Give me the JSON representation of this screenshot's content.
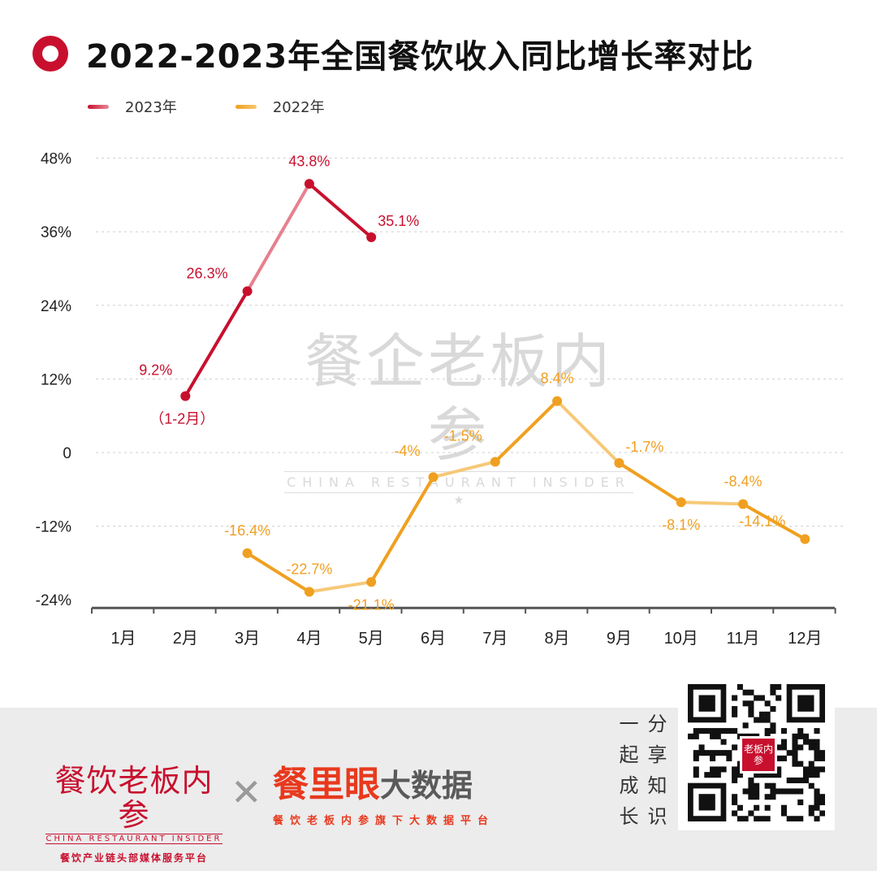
{
  "title": "2022-2023年全国餐饮收入同比增长率对比",
  "watermark": {
    "cn": "餐企老板内参",
    "en": "CHINA RESTAURANT INSIDER"
  },
  "colors": {
    "series_2023": "#c8102e",
    "series_2022": "#f0a020",
    "title_icon": "#c8102e"
  },
  "chart_data": {
    "type": "line",
    "title": "2022-2023年全国餐饮收入同比增长率对比",
    "categories": [
      "1月",
      "2月",
      "3月",
      "4月",
      "5月",
      "6月",
      "7月",
      "8月",
      "9月",
      "10月",
      "11月",
      "12月"
    ],
    "y_ticks": [
      "48%",
      "36%",
      "24%",
      "12%",
      "0",
      "-12%",
      "-24%"
    ],
    "ylim": [
      -24,
      48
    ],
    "grid": "dashed horizontal",
    "legend_position": "top-left",
    "series": [
      {
        "name": "2023年",
        "color": "#c8102e",
        "points": [
          {
            "category": "2月",
            "value": 9.2,
            "label": "9.2%",
            "note": "（1-2月）"
          },
          {
            "category": "3月",
            "value": 26.3,
            "label": "26.3%"
          },
          {
            "category": "4月",
            "value": 43.8,
            "label": "43.8%"
          },
          {
            "category": "5月",
            "value": 35.1,
            "label": "35.1%"
          }
        ]
      },
      {
        "name": "2022年",
        "color": "#f0a020",
        "points": [
          {
            "category": "3月",
            "value": -16.4,
            "label": "-16.4%"
          },
          {
            "category": "4月",
            "value": -22.7,
            "label": "-22.7%"
          },
          {
            "category": "5月",
            "value": -21.1,
            "label": "-21.1%"
          },
          {
            "category": "6月",
            "value": -4,
            "label": "-4%"
          },
          {
            "category": "7月",
            "value": -1.5,
            "label": "-1.5%"
          },
          {
            "category": "8月",
            "value": 8.4,
            "label": "8.4%"
          },
          {
            "category": "9月",
            "value": -1.7,
            "label": "-1.7%"
          },
          {
            "category": "10月",
            "value": -8.1,
            "label": "-8.1%"
          },
          {
            "category": "11月",
            "value": -8.4,
            "label": "-8.4%"
          },
          {
            "category": "12月",
            "value": -14.1,
            "label": "-14.1%"
          }
        ]
      }
    ]
  },
  "footer": {
    "brand1_cn": "餐饮老板内参",
    "brand1_en": "CHINA RESTAURANT INSIDER",
    "brand1_tagline": "餐饮产业链头部媒体服务平台",
    "brand2_red": "餐里眼",
    "brand2_gray": "大数据",
    "brand2_tagline": "餐饮老板内参旗下大数据平台",
    "slogan": [
      "一",
      "分",
      "起",
      "享",
      "成",
      "知",
      "长",
      "识"
    ],
    "qr_badge": "老板内参"
  }
}
